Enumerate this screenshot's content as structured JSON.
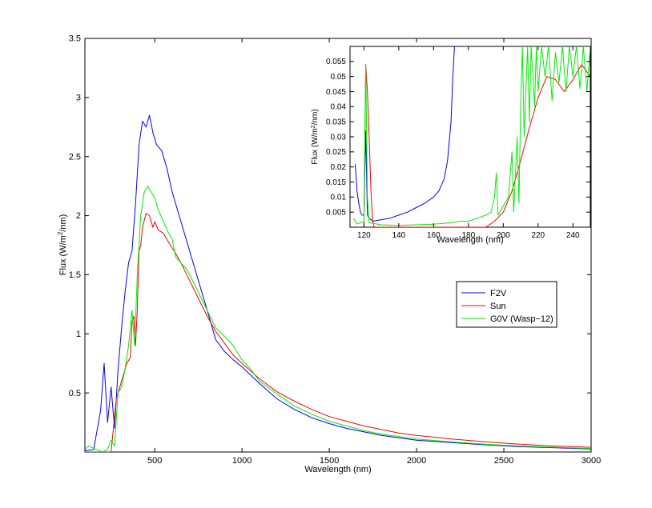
{
  "chart_data": [
    {
      "type": "line",
      "xlabel": "Wavelength (nm)",
      "ylabel": {
        "before": "Flux (W/m",
        "sup": "2",
        "after": "/nm)"
      },
      "xlim": [
        100,
        3000
      ],
      "ylim": [
        0,
        3.5
      ],
      "xticks": [
        500,
        1000,
        1500,
        2000,
        2500,
        3000
      ],
      "yticks": [
        0.5,
        1,
        1.5,
        2,
        2.5,
        3,
        3.5
      ],
      "grid": false,
      "legend_position": "middle-right",
      "series": [
        {
          "name": "F2V",
          "color": "#0000ff",
          "points": [
            [
              100,
              0.01
            ],
            [
              150,
              0.02
            ],
            [
              190,
              0.35
            ],
            [
              210,
              0.75
            ],
            [
              230,
              0.25
            ],
            [
              250,
              0.55
            ],
            [
              270,
              0.2
            ],
            [
              290,
              0.7
            ],
            [
              310,
              1.05
            ],
            [
              330,
              1.35
            ],
            [
              350,
              1.6
            ],
            [
              370,
              1.7
            ],
            [
              390,
              2.1
            ],
            [
              410,
              2.6
            ],
            [
              430,
              2.8
            ],
            [
              450,
              2.75
            ],
            [
              470,
              2.85
            ],
            [
              490,
              2.7
            ],
            [
              510,
              2.6
            ],
            [
              540,
              2.55
            ],
            [
              570,
              2.4
            ],
            [
              600,
              2.2
            ],
            [
              650,
              1.95
            ],
            [
              700,
              1.7
            ],
            [
              750,
              1.45
            ],
            [
              800,
              1.2
            ],
            [
              850,
              0.95
            ],
            [
              900,
              0.85
            ],
            [
              950,
              0.78
            ],
            [
              1000,
              0.72
            ],
            [
              1100,
              0.58
            ],
            [
              1200,
              0.45
            ],
            [
              1300,
              0.36
            ],
            [
              1400,
              0.29
            ],
            [
              1500,
              0.24
            ],
            [
              1600,
              0.2
            ],
            [
              1700,
              0.17
            ],
            [
              1800,
              0.14
            ],
            [
              1900,
              0.12
            ],
            [
              2000,
              0.1
            ],
            [
              2200,
              0.08
            ],
            [
              2400,
              0.06
            ],
            [
              2600,
              0.045
            ],
            [
              2800,
              0.035
            ],
            [
              3000,
              0.025
            ]
          ]
        },
        {
          "name": "Sun",
          "color": "#ff0000",
          "points": [
            [
              100,
              0.0
            ],
            [
              250,
              0.0
            ],
            [
              280,
              0.45
            ],
            [
              300,
              0.55
            ],
            [
              320,
              0.65
            ],
            [
              340,
              0.75
            ],
            [
              360,
              0.8
            ],
            [
              370,
              1.1
            ],
            [
              380,
              1.15
            ],
            [
              390,
              0.9
            ],
            [
              400,
              1.2
            ],
            [
              410,
              1.7
            ],
            [
              420,
              1.75
            ],
            [
              430,
              1.9
            ],
            [
              450,
              2.02
            ],
            [
              470,
              2.0
            ],
            [
              490,
              1.9
            ],
            [
              500,
              1.95
            ],
            [
              520,
              1.88
            ],
            [
              550,
              1.85
            ],
            [
              570,
              1.8
            ],
            [
              590,
              1.75
            ],
            [
              620,
              1.68
            ],
            [
              650,
              1.6
            ],
            [
              700,
              1.45
            ],
            [
              750,
              1.3
            ],
            [
              800,
              1.15
            ],
            [
              850,
              1.02
            ],
            [
              900,
              0.92
            ],
            [
              950,
              0.82
            ],
            [
              1000,
              0.75
            ],
            [
              1100,
              0.62
            ],
            [
              1200,
              0.51
            ],
            [
              1300,
              0.43
            ],
            [
              1400,
              0.36
            ],
            [
              1500,
              0.3
            ],
            [
              1600,
              0.26
            ],
            [
              1700,
              0.22
            ],
            [
              1800,
              0.19
            ],
            [
              1900,
              0.16
            ],
            [
              2000,
              0.14
            ],
            [
              2200,
              0.11
            ],
            [
              2400,
              0.085
            ],
            [
              2600,
              0.065
            ],
            [
              2800,
              0.05
            ],
            [
              3000,
              0.04
            ]
          ]
        },
        {
          "name": "G0V (Wasp−12)",
          "color": "#00ee00",
          "points": [
            [
              100,
              0.02
            ],
            [
              120,
              0.05
            ],
            [
              200,
              0.0
            ],
            [
              230,
              0.02
            ],
            [
              250,
              0.1
            ],
            [
              270,
              0.05
            ],
            [
              290,
              0.5
            ],
            [
              310,
              0.55
            ],
            [
              330,
              0.7
            ],
            [
              350,
              0.9
            ],
            [
              370,
              1.2
            ],
            [
              385,
              0.9
            ],
            [
              400,
              1.5
            ],
            [
              420,
              2.0
            ],
            [
              440,
              2.2
            ],
            [
              460,
              2.25
            ],
            [
              480,
              2.2
            ],
            [
              500,
              2.15
            ],
            [
              520,
              2.05
            ],
            [
              550,
              1.95
            ],
            [
              580,
              1.85
            ],
            [
              600,
              1.8
            ],
            [
              620,
              1.65
            ],
            [
              650,
              1.6
            ],
            [
              680,
              1.55
            ],
            [
              700,
              1.5
            ],
            [
              750,
              1.35
            ],
            [
              800,
              1.2
            ],
            [
              850,
              1.05
            ],
            [
              900,
              0.98
            ],
            [
              950,
              0.9
            ],
            [
              1000,
              0.78
            ],
            [
              1050,
              0.7
            ],
            [
              1100,
              0.6
            ],
            [
              1200,
              0.49
            ],
            [
              1300,
              0.39
            ],
            [
              1400,
              0.32
            ],
            [
              1500,
              0.26
            ],
            [
              1600,
              0.22
            ],
            [
              1700,
              0.18
            ],
            [
              1800,
              0.15
            ],
            [
              1900,
              0.13
            ],
            [
              2000,
              0.11
            ],
            [
              2200,
              0.085
            ],
            [
              2400,
              0.065
            ],
            [
              2600,
              0.05
            ],
            [
              2800,
              0.04
            ],
            [
              3000,
              0.03
            ]
          ]
        }
      ]
    },
    {
      "type": "line",
      "xlabel": "Wavelength (nm)",
      "ylabel": {
        "before": "Flux (W/m",
        "sup": "2",
        "after": "/nm)"
      },
      "xlim": [
        112,
        250
      ],
      "ylim": [
        0,
        0.06
      ],
      "xticks": [
        120,
        140,
        160,
        180,
        200,
        220,
        240
      ],
      "yticks": [
        0.005,
        0.01,
        0.015,
        0.02,
        0.025,
        0.03,
        0.035,
        0.04,
        0.045,
        0.05,
        0.055
      ],
      "grid": false,
      "series": [
        {
          "name": "F2V",
          "color": "#0000ff",
          "points": [
            [
              115,
              0.021
            ],
            [
              116,
              0.012
            ],
            [
              117,
              0.008
            ],
            [
              118,
              0.005
            ],
            [
              119,
              0.004
            ],
            [
              120,
              0.004
            ],
            [
              121,
              0.032
            ],
            [
              122,
              0.004
            ],
            [
              123,
              0.003
            ],
            [
              125,
              0.002
            ],
            [
              130,
              0.0025
            ],
            [
              135,
              0.003
            ],
            [
              140,
              0.004
            ],
            [
              145,
              0.005
            ],
            [
              150,
              0.0065
            ],
            [
              155,
              0.008
            ],
            [
              160,
              0.01
            ],
            [
              163,
              0.012
            ],
            [
              166,
              0.016
            ],
            [
              168,
              0.022
            ],
            [
              170,
              0.035
            ],
            [
              171,
              0.05
            ],
            [
              172,
              0.06
            ]
          ]
        },
        {
          "name": "Sun",
          "color": "#ff0000",
          "points": [
            [
              120,
              0.0
            ],
            [
              121,
              0.054
            ],
            [
              122,
              0.045
            ],
            [
              123,
              0.03
            ],
            [
              124,
              0.012
            ],
            [
              125,
              0.002
            ],
            [
              126,
              0.0
            ],
            [
              190,
              0.0
            ],
            [
              195,
              0.002
            ],
            [
              200,
              0.005
            ],
            [
              205,
              0.012
            ],
            [
              210,
              0.022
            ],
            [
              215,
              0.033
            ],
            [
              220,
              0.043
            ],
            [
              225,
              0.05
            ],
            [
              230,
              0.049
            ],
            [
              235,
              0.045
            ],
            [
              240,
              0.049
            ],
            [
              245,
              0.054
            ],
            [
              250,
              0.05
            ]
          ]
        },
        {
          "name": "G0V (Wasp−12)",
          "color": "#00ee00",
          "points": [
            [
              114,
              0.003
            ],
            [
              116,
              0.001
            ],
            [
              118,
              0.0015
            ],
            [
              120,
              0.002
            ],
            [
              121,
              0.054
            ],
            [
              122,
              0.01
            ],
            [
              123,
              0.0015
            ],
            [
              130,
              0.0008
            ],
            [
              140,
              0.0006
            ],
            [
              150,
              0.0008
            ],
            [
              160,
              0.001
            ],
            [
              170,
              0.0015
            ],
            [
              175,
              0.002
            ],
            [
              180,
              0.002
            ],
            [
              185,
              0.003
            ],
            [
              190,
              0.004
            ],
            [
              193,
              0.005
            ],
            [
              195,
              0.01
            ],
            [
              196,
              0.018
            ],
            [
              197,
              0.004
            ],
            [
              200,
              0.007
            ],
            [
              203,
              0.01
            ],
            [
              205,
              0.025
            ],
            [
              206,
              0.005
            ],
            [
              208,
              0.03
            ],
            [
              209,
              0.008
            ],
            [
              210,
              0.04
            ],
            [
              211,
              0.06
            ],
            [
              212,
              0.03
            ],
            [
              214,
              0.06
            ],
            [
              215,
              0.035
            ],
            [
              216,
              0.06
            ],
            [
              218,
              0.04
            ],
            [
              219,
              0.06
            ],
            [
              220,
              0.045
            ],
            [
              222,
              0.06
            ],
            [
              224,
              0.05
            ],
            [
              226,
              0.06
            ],
            [
              228,
              0.042
            ],
            [
              230,
              0.058
            ],
            [
              232,
              0.048
            ],
            [
              234,
              0.06
            ],
            [
              236,
              0.045
            ],
            [
              238,
              0.06
            ],
            [
              240,
              0.05
            ],
            [
              242,
              0.06
            ],
            [
              244,
              0.046
            ],
            [
              246,
              0.06
            ],
            [
              248,
              0.045
            ],
            [
              250,
              0.06
            ]
          ]
        }
      ]
    }
  ]
}
